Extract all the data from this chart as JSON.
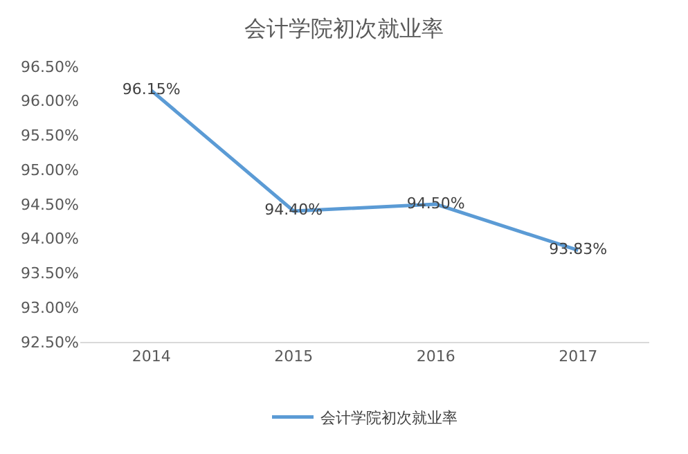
{
  "chart_data": {
    "type": "line",
    "title": "会计学院初次就业率",
    "categories": [
      "2014",
      "2015",
      "2016",
      "2017"
    ],
    "series": [
      {
        "name": "会计学院初次就业率",
        "color": "#5b9bd5",
        "values": [
          96.15,
          94.4,
          94.5,
          93.83
        ],
        "value_labels": [
          "96.15%",
          "94.40%",
          "94.50%",
          "93.83%"
        ]
      }
    ],
    "ylim": [
      92.5,
      96.5
    ],
    "yticks": [
      {
        "value": 92.5,
        "label": "92.50%"
      },
      {
        "value": 93.0,
        "label": "93.00%"
      },
      {
        "value": 93.5,
        "label": "93.50%"
      },
      {
        "value": 94.0,
        "label": "94.00%"
      },
      {
        "value": 94.5,
        "label": "94.50%"
      },
      {
        "value": 95.0,
        "label": "95.00%"
      },
      {
        "value": 95.5,
        "label": "95.50%"
      },
      {
        "value": 96.0,
        "label": "96.00%"
      },
      {
        "value": 96.5,
        "label": "96.50%"
      }
    ],
    "grid": false,
    "legend": "bottom",
    "marker": "none",
    "line_style": "solid"
  }
}
